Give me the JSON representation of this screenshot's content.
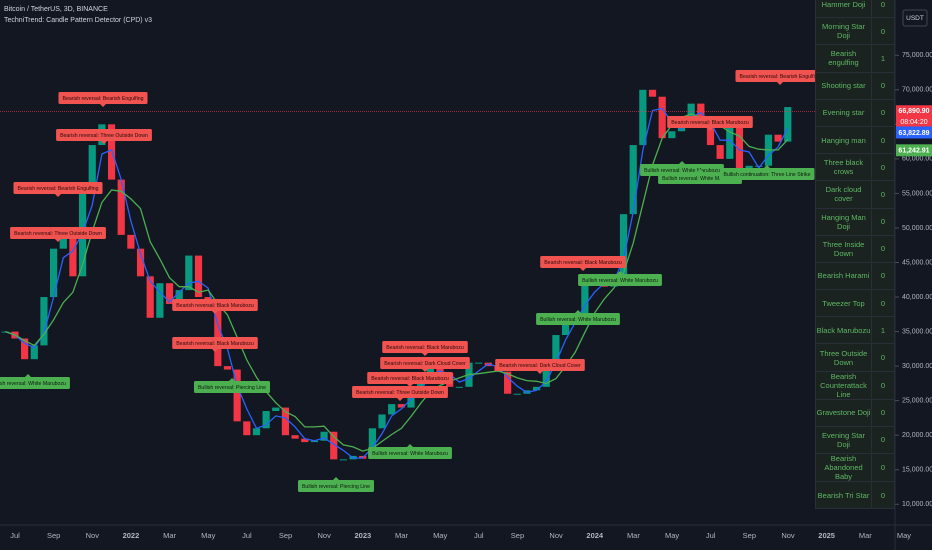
{
  "header": {
    "symbol": "Bitcoin / TetherUS, 3D, BINANCE",
    "indicator": "TechniTrend: Candle Pattern Detector (CPD) v3"
  },
  "chart_data": {
    "type": "candlestick",
    "up_color": "#089981",
    "down_color": "#f23645",
    "close": [
      35000,
      34000,
      31000,
      33000,
      40000,
      47000,
      50000,
      43000,
      55000,
      62000,
      65000,
      57000,
      49000,
      47000,
      43000,
      37000,
      42000,
      39000,
      41000,
      46000,
      40000,
      38000,
      30000,
      29500,
      22000,
      20000,
      21000,
      23500,
      24000,
      20000,
      19500,
      19000,
      19200,
      20500,
      16500,
      16500,
      17000,
      16600,
      21000,
      23000,
      24500,
      24000,
      27000,
      28500,
      30500,
      29000,
      27000,
      27000,
      30500,
      30500,
      30000,
      29200,
      26000,
      26000,
      26500,
      27000,
      30000,
      34500,
      37000,
      37500,
      42000,
      42500,
      41500,
      43000,
      52000,
      62000,
      70000,
      69000,
      63000,
      64000,
      66000,
      68000,
      66000,
      62000,
      60000,
      66000,
      58000,
      59000,
      59000,
      63500,
      62500,
      67500
    ],
    "series": [
      {
        "color": "#2962ff",
        "values": [
          35000,
          34500,
          33300,
          32700,
          34700,
          40000,
          45700,
          46700,
          49300,
          53300,
          60700,
          61300,
          57000,
          51000,
          46300,
          42300,
          40700,
          39300,
          40700,
          42000,
          42300,
          41300,
          36000,
          32500,
          27200,
          23800,
          21000,
          21500,
          22800,
          22500,
          21200,
          19500,
          19200,
          19600,
          18700,
          17800,
          16700,
          16700,
          18200,
          20200,
          22800,
          23800,
          25200,
          26500,
          28700,
          29300,
          28800,
          27700,
          28200,
          29300,
          30300,
          29900,
          28400,
          27100,
          26200,
          26500,
          27800,
          30500,
          33800,
          36300,
          38800,
          40700,
          42000,
          42300,
          45500,
          52300,
          61300,
          67000,
          67300,
          65300,
          64300,
          66000,
          66700,
          65300,
          62700,
          62700,
          61300,
          61000,
          58700,
          60500,
          61700,
          64500
        ]
      },
      {
        "color": "#4caf50",
        "values": [
          35000,
          34500,
          33700,
          33000,
          34600,
          36700,
          39200,
          40700,
          44700,
          49500,
          53700,
          55500,
          55300,
          54200,
          52800,
          48000,
          45500,
          42800,
          41500,
          41500,
          40700,
          41000,
          39000,
          37400,
          34200,
          30900,
          28400,
          26300,
          24700,
          23400,
          22700,
          21200,
          21200,
          21300,
          19800,
          18600,
          18300,
          17700,
          18100,
          19100,
          20100,
          21000,
          22700,
          24600,
          26300,
          27200,
          27800,
          28300,
          28800,
          28900,
          29100,
          29300,
          28900,
          28300,
          27900,
          27800,
          27500,
          28200,
          30000,
          32000,
          34900,
          37700,
          39700,
          41300,
          43500,
          47800,
          53500,
          59100,
          63000,
          64900,
          66000,
          66500,
          66000,
          65200,
          64800,
          63900,
          63300,
          61800,
          61400,
          61300,
          61300,
          62800
        ]
      }
    ],
    "ylim": [
      7000,
      83000
    ],
    "yticks": [
      {
        "value": 75000,
        "label": "75,000.00"
      },
      {
        "value": 70000,
        "label": "70,000.00"
      },
      {
        "value": 65000,
        "label": "65,000.00"
      },
      {
        "value": 60000,
        "label": "60,000.00"
      },
      {
        "value": 55000,
        "label": "55,000.00"
      },
      {
        "value": 50000,
        "label": "50,000.00"
      },
      {
        "value": 45000,
        "label": "45,000.00"
      },
      {
        "value": 40000,
        "label": "40,000.00"
      },
      {
        "value": 35000,
        "label": "35,000.00"
      },
      {
        "value": 30000,
        "label": "30,000.00"
      },
      {
        "value": 25000,
        "label": "25,000.00"
      },
      {
        "value": 20000,
        "label": "20,000.00"
      },
      {
        "value": 15000,
        "label": "15,000.00"
      },
      {
        "value": 10000,
        "label": "10,000.00"
      }
    ],
    "x_labels": [
      "Jul",
      "Sep",
      "Nov",
      "2022",
      "Mar",
      "May",
      "Jul",
      "Sep",
      "Nov",
      "2023",
      "Mar",
      "May",
      "Jul",
      "Sep",
      "Nov",
      "2024",
      "Mar",
      "May",
      "Jul",
      "Sep",
      "Nov",
      "2025",
      "Mar",
      "May"
    ],
    "currency": "USDT",
    "last_price": {
      "value": 66890.9,
      "label": "66,890.90",
      "countdown": "08:04:20",
      "color": "#f23645"
    },
    "price_labels": [
      {
        "value": 63822.89,
        "label": "63,822.89",
        "color": "#2962ff"
      },
      {
        "value": 61242.91,
        "label": "61,242.91",
        "color": "#4caf50"
      }
    ],
    "annotations": [
      {
        "text": "Bearish reversal: Bearish Engulfing",
        "color": "#f05350"
      },
      {
        "text": "Bearish reversal: Three Outside Down",
        "color": "#f05350"
      },
      {
        "text": "Bearish reversal: Bearish Engulfing",
        "color": "#f05350"
      },
      {
        "text": "Bearish reversal: Three Outside Down",
        "color": "#f05350"
      },
      {
        "text": "Bearish reversal: Black Marubozu",
        "color": "#f05350"
      },
      {
        "text": "Bearish reversal: Black Marubozu",
        "color": "#f05350"
      },
      {
        "text": "Bearish reversal: Black Marubozu",
        "color": "#f05350"
      },
      {
        "text": "Bearish reversal: Dark Cloud Cover",
        "color": "#f05350"
      },
      {
        "text": "Bearish reversal: Black Marubozu",
        "color": "#f05350"
      },
      {
        "text": "Bearish reversal: Three Outside Down",
        "color": "#f05350"
      },
      {
        "text": "Bearish reversal: Dark Cloud Cover",
        "color": "#f05350"
      },
      {
        "text": "Bearish reversal: Black Marubozu",
        "color": "#f05350"
      },
      {
        "text": "Bearish reversal: Black Marubozu",
        "color": "#f05350"
      },
      {
        "text": "Bearish reversal: Bearish Engulfing",
        "color": "#f05350"
      },
      {
        "text": "Bullish reversal: White Marubozu",
        "color": "#4caf50"
      },
      {
        "text": "Bullish reversal: Piercing Line",
        "color": "#4caf50"
      },
      {
        "text": "Bullish reversal: Piercing Line",
        "color": "#4caf50"
      },
      {
        "text": "Bullish reversal: White Marubozu",
        "color": "#4caf50"
      },
      {
        "text": "Bullish reversal: White Marubozu",
        "color": "#4caf50"
      },
      {
        "text": "Bullish reversal: White Marubozu",
        "color": "#4caf50"
      },
      {
        "text": "Bullish reversal: White Marubozu",
        "color": "#4caf50"
      },
      {
        "text": "Bullish reversal: White Marubozu",
        "color": "#4caf50"
      },
      {
        "text": "Bullish continuation: Three Line Strike",
        "color": "#4caf50"
      }
    ]
  },
  "table": {
    "rows": [
      [
        "Hammer Doji",
        "0"
      ],
      [
        "Morning Star Doji",
        "0"
      ],
      [
        "Bearish engulfing",
        "1"
      ],
      [
        "Shooting star",
        "0"
      ],
      [
        "Evening star",
        "0"
      ],
      [
        "Hanging man",
        "0"
      ],
      [
        "Three black crows",
        "0"
      ],
      [
        "Dark cloud cover",
        "0"
      ],
      [
        "Hanging Man Doji",
        "0"
      ],
      [
        "Three Inside Down",
        "0"
      ],
      [
        "Bearish Harami",
        "0"
      ],
      [
        "Tweezer Top",
        "0"
      ],
      [
        "Black Marubozu",
        "1"
      ],
      [
        "Three Outside Down",
        "0"
      ],
      [
        "Bearish Counterattack Line",
        "0"
      ],
      [
        "Gravestone Doji",
        "0"
      ],
      [
        "Evening Star Doji",
        "0"
      ],
      [
        "Bearish Abandoned Baby",
        "0"
      ],
      [
        "Bearish Tri Star",
        "0"
      ]
    ]
  }
}
